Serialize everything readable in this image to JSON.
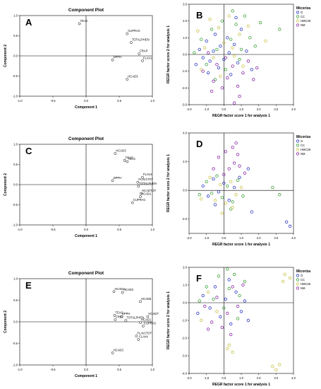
{
  "figure": {
    "panels": [
      {
        "id": "A",
        "letter": "A",
        "kind": "component",
        "title": "Component Plot",
        "xlabel": "Component 1",
        "ylabel": "Component 2"
      },
      {
        "id": "B",
        "letter": "B",
        "kind": "scatter",
        "xlabel": "REGR factor score 1 for analysis 1",
        "ylabel": "REGR factor score 2 for analysis 1",
        "legend_title": "Micoriza"
      },
      {
        "id": "C",
        "letter": "C",
        "kind": "component",
        "title": "Component Plot",
        "xlabel": "Component 1",
        "ylabel": "Component 2"
      },
      {
        "id": "D",
        "letter": "D",
        "kind": "scatter",
        "xlabel": "REGR factor score 1 for analysis 1",
        "ylabel": "REGR factor score 2 for analysis 1",
        "legend_title": "Micoriza"
      },
      {
        "id": "E",
        "letter": "E",
        "kind": "component",
        "title": "Component Plot",
        "xlabel": "Component 1",
        "ylabel": "Component 2"
      },
      {
        "id": "F",
        "letter": "F",
        "kind": "scatter",
        "xlabel": "REGR factor score 1 for analysis 1",
        "ylabel": "REGR factor score 2 for analysis 1",
        "legend_title": "Micoriza"
      }
    ],
    "colors": {
      "G": "#2e3cc4",
      "CC": "#3fa33a",
      "HMC26": "#c9c24a",
      "NM": "#8a2aa8",
      "axis": "#000000",
      "frame": "#888888"
    }
  },
  "chart_data": [
    {
      "panel": "A",
      "type": "scatter",
      "title": "Component Plot",
      "xlabel": "Component 1",
      "ylabel": "Component 2",
      "xlim": [
        -1.0,
        1.0
      ],
      "ylim": [
        -1.0,
        1.0
      ],
      "xticks": [
        "-1.0",
        "-0.5",
        "0.0",
        "0.5",
        "1.0"
      ],
      "yticks": [
        "1.0",
        "0.5",
        "0.0",
        "-0.5",
        "-1.0"
      ],
      "points": [
        {
          "label": "TEAC",
          "x": -0.1,
          "y": 0.8
        },
        {
          "label": "CUPRAC",
          "x": 0.62,
          "y": 0.55
        },
        {
          "label": "TOTALPHEN",
          "x": 0.68,
          "y": 0.33
        },
        {
          "label": "FRAP",
          "x": 0.8,
          "y": 0.05
        },
        {
          "label": "DPPH",
          "x": 0.4,
          "y": -0.1
        },
        {
          "label": "FLAV1",
          "x": 0.85,
          "y": -0.12
        },
        {
          "label": "HCAD3",
          "x": 0.62,
          "y": -0.58
        }
      ]
    },
    {
      "panel": "B",
      "type": "scatter",
      "xlabel": "REGR factor score 1 for analysis 1",
      "ylabel": "REGR factor score 2 for analysis 1",
      "xlim": [
        -2.0,
        4.0
      ],
      "ylim": [
        -3.0,
        3.0
      ],
      "xticks": [
        "-2.0",
        "-1.0",
        "0.0",
        "1.0",
        "2.0",
        "3.0",
        "4.0"
      ],
      "yticks": [
        "3.0",
        "2.0",
        "1.0",
        "0.0",
        "-1.0",
        "-2.0",
        "-3.0"
      ],
      "legend": {
        "title": "Micoriza",
        "entries": [
          "G",
          "CC",
          "HMC26",
          "NM"
        ],
        "placement": "top-right"
      },
      "series": [
        {
          "name": "G",
          "points": [
            [
              -1.4,
              0.3
            ],
            [
              -1.2,
              -0.2
            ],
            [
              -1.0,
              0.8
            ],
            [
              -0.8,
              -0.4
            ],
            [
              -0.6,
              0.2
            ],
            [
              -0.5,
              1.2
            ],
            [
              -0.3,
              -0.8
            ],
            [
              -0.2,
              0.5
            ],
            [
              0.0,
              -0.3
            ],
            [
              0.2,
              1.0
            ],
            [
              0.4,
              -1.2
            ],
            [
              0.6,
              0.6
            ],
            [
              0.8,
              -0.5
            ],
            [
              1.0,
              1.5
            ],
            [
              1.3,
              0.2
            ],
            [
              1.6,
              -0.9
            ],
            [
              -0.9,
              -1.1
            ],
            [
              0.3,
              0.1
            ],
            [
              -1.6,
              -0.6
            ],
            [
              0.7,
              2.2
            ]
          ]
        },
        {
          "name": "CC",
          "points": [
            [
              -1.3,
              0.9
            ],
            [
              -1.0,
              -0.6
            ],
            [
              -0.7,
              1.5
            ],
            [
              -0.4,
              0.3
            ],
            [
              -0.1,
              2.0
            ],
            [
              0.1,
              -0.9
            ],
            [
              0.4,
              0.9
            ],
            [
              0.7,
              1.8
            ],
            [
              1.0,
              0.3
            ],
            [
              1.2,
              2.3
            ],
            [
              1.5,
              1.0
            ],
            [
              1.8,
              0.5
            ],
            [
              2.1,
              1.9
            ],
            [
              3.2,
              1.5
            ],
            [
              -0.5,
              -1.5
            ],
            [
              0.5,
              2.6
            ],
            [
              -1.7,
              0.1
            ],
            [
              0.9,
              -0.3
            ]
          ]
        },
        {
          "name": "HMC26",
          "points": [
            [
              -1.5,
              1.4
            ],
            [
              -1.1,
              0.4
            ],
            [
              -0.8,
              2.1
            ],
            [
              -0.6,
              -0.2
            ],
            [
              -0.3,
              1.6
            ],
            [
              0.0,
              0.7
            ],
            [
              0.3,
              2.3
            ],
            [
              0.6,
              -0.1
            ],
            [
              0.9,
              1.2
            ],
            [
              1.1,
              -0.7
            ],
            [
              1.4,
              1.7
            ],
            [
              2.4,
              0.8
            ],
            [
              -0.2,
              -1.3
            ],
            [
              0.5,
              0.4
            ],
            [
              -1.3,
              -0.9
            ]
          ]
        },
        {
          "name": "NM",
          "points": [
            [
              -1.2,
              -1.0
            ],
            [
              -0.9,
              0.1
            ],
            [
              -0.6,
              -1.6
            ],
            [
              -0.4,
              -0.6
            ],
            [
              -0.1,
              -2.0
            ],
            [
              0.2,
              -1.4
            ],
            [
              0.5,
              -0.7
            ],
            [
              0.8,
              -1.9
            ],
            [
              1.1,
              -1.1
            ],
            [
              1.4,
              -0.4
            ],
            [
              1.7,
              -1.5
            ],
            [
              0.9,
              -2.5
            ],
            [
              1.9,
              -0.8
            ],
            [
              0.1,
              -0.2
            ],
            [
              -0.7,
              -2.2
            ],
            [
              0.6,
              -2.9
            ]
          ]
        }
      ]
    },
    {
      "panel": "C",
      "type": "scatter",
      "title": "Component Plot",
      "xlabel": "Component 1",
      "ylabel": "Component 2",
      "xlim": [
        -1.0,
        1.0
      ],
      "ylim": [
        -1.0,
        1.0
      ],
      "xticks": [
        "-1.0",
        "-0.5",
        "0.0",
        "0.5",
        "1.0"
      ],
      "yticks": [
        "1.0",
        "0.5",
        "0.0",
        "-0.5",
        "-1.0"
      ],
      "points": [
        {
          "label": "HCAD3",
          "x": 0.44,
          "y": 0.77
        },
        {
          "label": "FRAP",
          "x": 0.58,
          "y": 0.6
        },
        {
          "label": "TEAC",
          "x": 0.62,
          "y": 0.57
        },
        {
          "label": "DPPH",
          "x": 0.4,
          "y": 0.1
        },
        {
          "label": "FLAV4",
          "x": 0.85,
          "y": 0.18
        },
        {
          "label": "FLAV1TOT",
          "x": 0.78,
          "y": 0.06
        },
        {
          "label": "TOTALPHEN",
          "x": 0.79,
          "y": -0.04
        },
        {
          "label": "HCADTOT",
          "x": 0.83,
          "y": -0.22
        },
        {
          "label": "HCAD1",
          "x": 0.82,
          "y": -0.3
        },
        {
          "label": "CUPRAC",
          "x": 0.7,
          "y": -0.45
        }
      ]
    },
    {
      "panel": "D",
      "type": "scatter",
      "xlabel": "REGR factor score 1 for analysis 1",
      "ylabel": "REGR factor score 2 for analysis 1",
      "xlim": [
        -2.0,
        4.0
      ],
      "ylim": [
        -3.0,
        4.0
      ],
      "xticks": [
        "-2.0",
        "-1.0",
        "0.0",
        "1.0",
        "2.0",
        "3.0",
        "4.0"
      ],
      "yticks": [
        "4.0",
        "2.0",
        "0.0",
        "-2.0"
      ],
      "legend": {
        "title": "Micoriza",
        "entries": [
          "G",
          "CC",
          "HMC26",
          "NM"
        ],
        "placement": "top-right"
      },
      "series": [
        {
          "name": "G",
          "points": [
            [
              -1.2,
              0.3
            ],
            [
              -0.9,
              -0.4
            ],
            [
              -0.6,
              0.8
            ],
            [
              -0.3,
              -0.1
            ],
            [
              0.0,
              0.5
            ],
            [
              0.3,
              -0.7
            ],
            [
              0.6,
              0.2
            ],
            [
              1.4,
              1.5
            ],
            [
              1.6,
              -1.5
            ],
            [
              3.6,
              -2.2
            ],
            [
              3.8,
              -2.5
            ],
            [
              -0.5,
              -1.0
            ],
            [
              0.9,
              0.9
            ]
          ]
        },
        {
          "name": "CC",
          "points": [
            [
              -1.0,
              0.6
            ],
            [
              -0.7,
              -0.2
            ],
            [
              -0.4,
              1.0
            ],
            [
              -0.1,
              -0.5
            ],
            [
              0.2,
              0.3
            ],
            [
              0.5,
              -0.8
            ],
            [
              0.8,
              0.7
            ],
            [
              2.8,
              0.2
            ],
            [
              3.2,
              -0.3
            ],
            [
              -1.4,
              -0.3
            ],
            [
              0.4,
              -1.3
            ],
            [
              1.1,
              -0.4
            ]
          ]
        },
        {
          "name": "HMC26",
          "points": [
            [
              -1.3,
              -0.6
            ],
            [
              -0.8,
              0.9
            ],
            [
              -0.5,
              -0.7
            ],
            [
              -0.2,
              0.4
            ],
            [
              0.1,
              -0.9
            ],
            [
              0.4,
              0.6
            ],
            [
              0.7,
              -0.3
            ],
            [
              1.0,
              0.2
            ],
            [
              -0.1,
              -1.6
            ],
            [
              0.5,
              -1.2
            ]
          ]
        },
        {
          "name": "NM",
          "points": [
            [
              -0.3,
              2.3
            ],
            [
              0.1,
              2.7
            ],
            [
              0.5,
              3.0
            ],
            [
              0.8,
              2.5
            ],
            [
              0.6,
              1.9
            ],
            [
              0.3,
              1.5
            ],
            [
              -0.6,
              1.5
            ],
            [
              1.2,
              1.2
            ],
            [
              0.0,
              1.1
            ],
            [
              0.9,
              1.7
            ],
            [
              0.7,
              3.3
            ]
          ]
        }
      ]
    },
    {
      "panel": "E",
      "type": "scatter",
      "title": "Component Plot",
      "xlabel": "Component 1",
      "ylabel": "Component 2",
      "xlim": [
        -1.0,
        1.0
      ],
      "ylim": [
        -1.0,
        1.0
      ],
      "xticks": [
        "-1.0",
        "-0.5",
        "0.0",
        "0.5",
        "1.0"
      ],
      "yticks": [
        "1.0",
        "0.5",
        "0.0",
        "-0.5",
        "-1.0"
      ],
      "points": [
        {
          "label": "HCAD4",
          "x": 0.42,
          "y": 0.7
        },
        {
          "label": "HCAD3",
          "x": 0.55,
          "y": 0.68
        },
        {
          "label": "HCAD6",
          "x": 0.82,
          "y": 0.47
        },
        {
          "label": "TEAC",
          "x": 0.43,
          "y": 0.15
        },
        {
          "label": "DPPH",
          "x": 0.53,
          "y": 0.12
        },
        {
          "label": "HCADTOT",
          "x": 0.93,
          "y": 0.12
        },
        {
          "label": "FRAP",
          "x": 0.44,
          "y": 0.05
        },
        {
          "label": "TOTALPHEN",
          "x": 0.6,
          "y": 0.03
        },
        {
          "label": "HCAD1",
          "x": 0.82,
          "y": -0.02
        },
        {
          "label": "CUPRAC",
          "x": 0.86,
          "y": -0.1
        },
        {
          "label": "FLAV1TOT",
          "x": 0.76,
          "y": -0.33
        },
        {
          "label": "FLAV4",
          "x": 0.79,
          "y": -0.41
        },
        {
          "label": "HCADC",
          "x": 0.4,
          "y": -0.72
        }
      ]
    },
    {
      "panel": "F",
      "type": "scatter",
      "xlabel": "REGR factor score 1 for analysis 1",
      "ylabel": "REGR factor score 2 for analysis 1",
      "xlim": [
        -2.0,
        4.0
      ],
      "ylim": [
        -4.0,
        2.0
      ],
      "xticks": [
        "-2.0",
        "-1.0",
        "0.0",
        "1.0",
        "2.0",
        "3.0",
        "4.0"
      ],
      "yticks": [
        "2.0",
        "1.0",
        "0.0",
        "-1.0",
        "-2.0",
        "-3.0",
        "-4.0"
      ],
      "legend": {
        "title": "Micoriza",
        "entries": [
          "G",
          "CC",
          "HMC26",
          "NM"
        ],
        "placement": "top-right"
      },
      "series": [
        {
          "name": "G",
          "points": [
            [
              -1.2,
              0.4
            ],
            [
              -0.8,
              -0.3
            ],
            [
              -0.5,
              0.9
            ],
            [
              -0.2,
              -0.8
            ],
            [
              0.1,
              0.2
            ],
            [
              0.4,
              -1.2
            ],
            [
              0.7,
              0.6
            ],
            [
              1.0,
              -0.5
            ],
            [
              1.4,
              -1.0
            ],
            [
              -1.5,
              -0.6
            ],
            [
              0.3,
              1.3
            ],
            [
              1.2,
              0.1
            ]
          ]
        },
        {
          "name": "CC",
          "points": [
            [
              -1.0,
              0.9
            ],
            [
              -0.6,
              0.2
            ],
            [
              -0.3,
              1.5
            ],
            [
              0.0,
              -0.3
            ],
            [
              0.3,
              0.8
            ],
            [
              0.6,
              1.6
            ],
            [
              0.9,
              0.4
            ],
            [
              1.2,
              1.2
            ],
            [
              -1.4,
              0.1
            ],
            [
              0.2,
              1.9
            ],
            [
              0.8,
              -0.9
            ]
          ]
        },
        {
          "name": "HMC26",
          "points": [
            [
              -1.3,
              -1.0
            ],
            [
              -0.9,
              0.6
            ],
            [
              -0.4,
              -0.5
            ],
            [
              0.2,
              -2.6
            ],
            [
              0.5,
              -2.8
            ],
            [
              0.3,
              -2.4
            ],
            [
              2.8,
              -3.6
            ],
            [
              3.0,
              -3.8
            ],
            [
              3.2,
              -3.5
            ],
            [
              3.5,
              1.6
            ],
            [
              3.8,
              1.4
            ],
            [
              3.4,
              1.2
            ]
          ]
        },
        {
          "name": "NM",
          "points": [
            [
              -1.1,
              -0.2
            ],
            [
              -0.7,
              -1.1
            ],
            [
              -0.4,
              0.3
            ],
            [
              -0.1,
              -1.4
            ],
            [
              0.2,
              -0.6
            ],
            [
              0.5,
              0.9
            ],
            [
              0.8,
              -0.2
            ],
            [
              1.1,
              1.0
            ],
            [
              -0.9,
              -1.5
            ],
            [
              0.4,
              -1.8
            ]
          ]
        }
      ]
    }
  ]
}
